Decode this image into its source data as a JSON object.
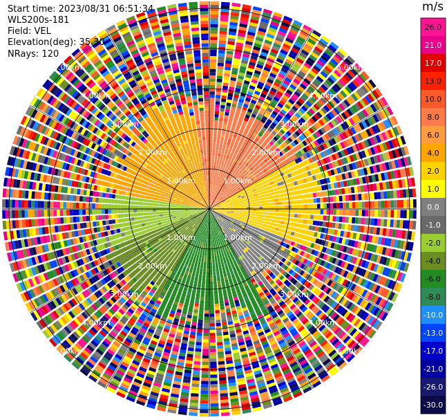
{
  "header": {
    "start_time": "Start time: 2023/08/31 06:51:34",
    "instrument": "WLS200s-181",
    "field": "Field: VEL",
    "elevation": "Elevation(deg): 35.30",
    "nrays": "NRays: 120"
  },
  "chart_data": {
    "type": "heatmap",
    "projection": "polar (PPI)",
    "field": "VEL",
    "units": "m/s",
    "nrays": 120,
    "ring_labels": [
      "1.00km",
      "2.00km",
      "3.00km",
      "4.00km",
      "5.00km"
    ],
    "colorbar": {
      "unit": "m/s",
      "levels": [
        "26.0",
        "21.0",
        "17.0",
        "13.0",
        "10.0",
        "8.0",
        "6.0",
        "4.0",
        "2.0",
        "1.0",
        "0.0",
        "-1.0",
        "-2.0",
        "-4.0",
        "-6.0",
        "-8.0",
        "-10.0",
        "-13.0",
        "-17.0",
        "-21.0",
        "-26.0",
        "-30.0"
      ],
      "colors": [
        "#ff1493",
        "#e8008a",
        "#e00000",
        "#ff2200",
        "#ff5a28",
        "#ff7b4a",
        "#ff9d3f",
        "#ffa500",
        "#ffd200",
        "#ffff00",
        "#808080",
        "#6a6a6a",
        "#9acd32",
        "#6b8e23",
        "#228b22",
        "#2e8b57",
        "#1e90ff",
        "#0044ff",
        "#0000cd",
        "#0000a0",
        "#191970",
        "#0b0b4a"
      ]
    },
    "sectors": [
      {
        "azimuth_deg": [
          -80,
          -10
        ],
        "range_km": [
          0,
          2.6
        ],
        "velocity_ms": 4.0
      },
      {
        "azimuth_deg": [
          -10,
          60
        ],
        "range_km": [
          0,
          2.4
        ],
        "velocity_ms": 8.0
      },
      {
        "azimuth_deg": [
          60,
          110
        ],
        "range_km": [
          0,
          2.6
        ],
        "velocity_ms": 2.0
      },
      {
        "azimuth_deg": [
          110,
          150
        ],
        "range_km": [
          0,
          2.2
        ],
        "velocity_ms": 0.0
      },
      {
        "azimuth_deg": [
          150,
          210
        ],
        "range_km": [
          0,
          2.6
        ],
        "velocity_ms": -6.0
      },
      {
        "azimuth_deg": [
          210,
          250
        ],
        "range_km": [
          0,
          2.6
        ],
        "velocity_ms": -4.0
      },
      {
        "azimuth_deg": [
          250,
          280
        ],
        "range_km": [
          0,
          2.6
        ],
        "velocity_ms": -2.0
      }
    ]
  }
}
